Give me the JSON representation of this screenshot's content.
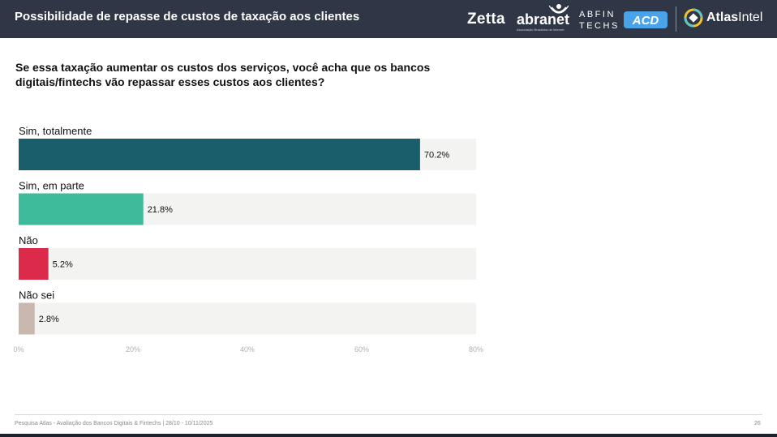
{
  "header": {
    "title": "Possibilidade de repasse de custos de taxação aos clientes",
    "logos": {
      "zetta": "Zetta",
      "abranet": "abranet",
      "abranet_sub": "Associação Brasileira de Internet",
      "abfintechs_line1": "ABFIN",
      "abfintechs_line2": "TECHS",
      "acd": "ACD",
      "atlas_bold": "Atlas",
      "atlas_light": "Intel"
    }
  },
  "question": "Se essa taxação aumentar os custos dos serviços, você acha que os bancos digitais/fintechs vão repassar esses custos aos clientes?",
  "chart_data": {
    "type": "bar",
    "orientation": "horizontal",
    "categories": [
      "Sim, totalmente",
      "Sim, em parte",
      "Não",
      "Não sei"
    ],
    "values": [
      70.2,
      21.8,
      5.2,
      2.8
    ],
    "value_labels": [
      "70.2%",
      "21.8%",
      "5.2%",
      "2.8%"
    ],
    "colors": [
      "#1b5e6b",
      "#3dbb9a",
      "#dc2a4b",
      "#c9b8ad"
    ],
    "track_color": "#f3f3f2",
    "xlim": [
      0,
      80
    ],
    "xticks": [
      0,
      20,
      40,
      60,
      80
    ],
    "xtick_labels": [
      "0%",
      "20%",
      "40%",
      "60%",
      "80%"
    ],
    "title": "",
    "xlabel": "",
    "ylabel": ""
  },
  "footer": {
    "source": "Pesquisa Atlas - Avaliação dos Bancos Digitais & Fintechs | 28/10 - 10/11/2025",
    "page": "26"
  }
}
